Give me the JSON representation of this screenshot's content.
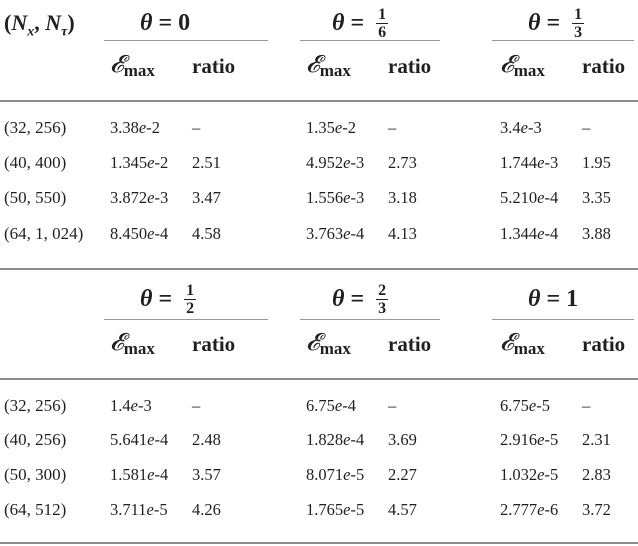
{
  "header": {
    "size_label": "(N_x, N_τ)",
    "size_label_N": "N",
    "size_label_x": "x",
    "size_label_tau": "τ"
  },
  "col_labels": {
    "emax": "𝓔",
    "emax_sub": "max",
    "ratio": "ratio"
  },
  "blocks": [
    {
      "thetas": [
        {
          "num": "0",
          "frac": false
        },
        {
          "num": "1",
          "den": "6",
          "frac": true
        },
        {
          "num": "1",
          "den": "3",
          "frac": true
        }
      ],
      "rows": [
        {
          "size": "(32, 256)",
          "cells": [
            "3.38e-2",
            "–",
            "1.35e-2",
            "–",
            "3.4e-3",
            "–"
          ]
        },
        {
          "size": "(40, 400)",
          "cells": [
            "1.345e-2",
            "2.51",
            "4.952e-3",
            "2.73",
            "1.744e-3",
            "1.95"
          ]
        },
        {
          "size": "(50, 550)",
          "cells": [
            "3.872e-3",
            "3.47",
            "1.556e-3",
            "3.18",
            "5.210e-4",
            "3.35"
          ]
        },
        {
          "size": "(64, 1, 024)",
          "cells": [
            "8.450e-4",
            "4.58",
            "3.763e-4",
            "4.13",
            "1.344e-4",
            "3.88"
          ]
        }
      ]
    },
    {
      "thetas": [
        {
          "num": "1",
          "den": "2",
          "frac": true
        },
        {
          "num": "2",
          "den": "3",
          "frac": true
        },
        {
          "num": "1",
          "frac": false
        }
      ],
      "rows": [
        {
          "size": "(32, 256)",
          "cells": [
            "1.4e-3",
            "–",
            "6.75e-4",
            "–",
            "6.75e-5",
            "–"
          ]
        },
        {
          "size": "(40, 256)",
          "cells": [
            "5.641e-4",
            "2.48",
            "1.828e-4",
            "3.69",
            "2.916e-5",
            "2.31"
          ]
        },
        {
          "size": "(50, 300)",
          "cells": [
            "1.581e-4",
            "3.57",
            "8.071e-5",
            "2.27",
            "1.032e-5",
            "2.83"
          ]
        },
        {
          "size": "(64, 512)",
          "cells": [
            "3.711e-5",
            "4.26",
            "1.765e-5",
            "4.57",
            "2.777e-6",
            "3.72"
          ]
        }
      ]
    }
  ]
}
